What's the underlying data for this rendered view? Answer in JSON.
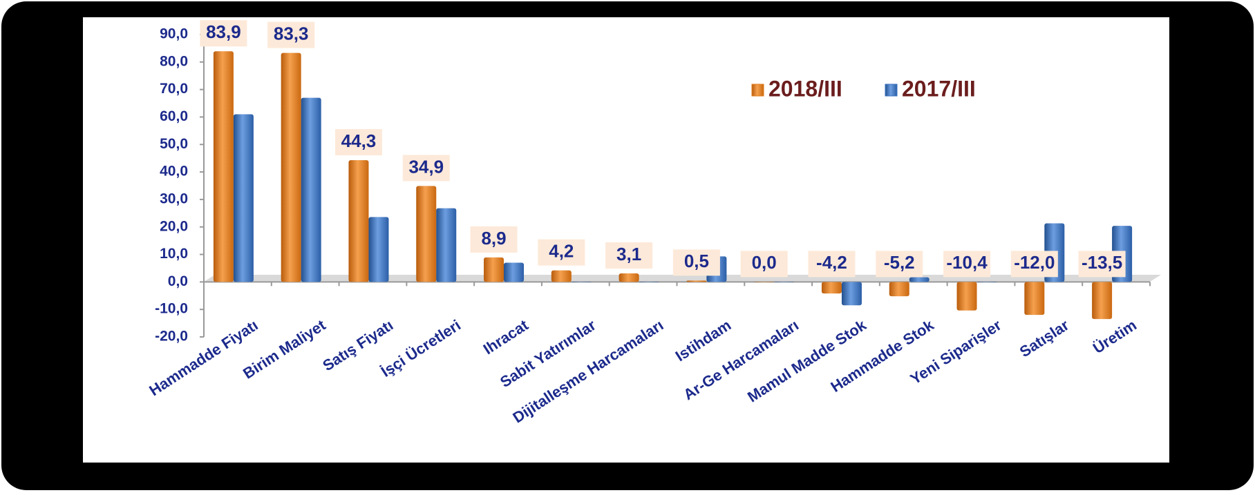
{
  "chart_data": {
    "type": "bar",
    "categories": [
      "Hammadde Fiyatı",
      "Birim Maliyet",
      "Satış Fiyatı",
      "İşçi Ücretleri",
      "Ihracat",
      "Sabit Yatırımlar",
      "Dijitalleşme Harcamaları",
      "Istihdam",
      "Ar-Ge Harcamaları",
      "Mamul Madde Stok",
      "Hammadde Stok",
      "Yeni Siparişler",
      "Satışlar",
      "Üretim"
    ],
    "series": [
      {
        "name": "2018/III",
        "color": "#e07b1a",
        "values": [
          83.9,
          83.3,
          44.3,
          34.9,
          8.9,
          4.2,
          3.1,
          0.5,
          0.0,
          -4.2,
          -5.2,
          -10.4,
          -12.0,
          -13.5
        ],
        "value_labels": [
          "83,9",
          "83,3",
          "44,3",
          "34,9",
          "8,9",
          "4,2",
          "3,1",
          "0,5",
          "0,0",
          "-4,2",
          "-5,2",
          "-10,4",
          "-12,0",
          "-13,5"
        ]
      },
      {
        "name": "2017/III",
        "color": "#3a72c0",
        "values": [
          61,
          67,
          23.6,
          26.8,
          7,
          0,
          0,
          9.3,
          0,
          -8.5,
          1.7,
          0,
          21.3,
          20.4
        ]
      }
    ],
    "ylim": [
      -20,
      90
    ],
    "yticks": [
      {
        "value": -20,
        "label": "-20,0"
      },
      {
        "value": -10,
        "label": "-10,0"
      },
      {
        "value": 0,
        "label": "0,0"
      },
      {
        "value": 10,
        "label": "10,0"
      },
      {
        "value": 20,
        "label": "20,0"
      },
      {
        "value": 30,
        "label": "30,0"
      },
      {
        "value": 40,
        "label": "40,0"
      },
      {
        "value": 50,
        "label": "50,0"
      },
      {
        "value": 60,
        "label": "60,0"
      },
      {
        "value": 70,
        "label": "70,0"
      },
      {
        "value": 80,
        "label": "80,0"
      },
      {
        "value": 90,
        "label": "90,0"
      }
    ],
    "legend": "top-right"
  }
}
